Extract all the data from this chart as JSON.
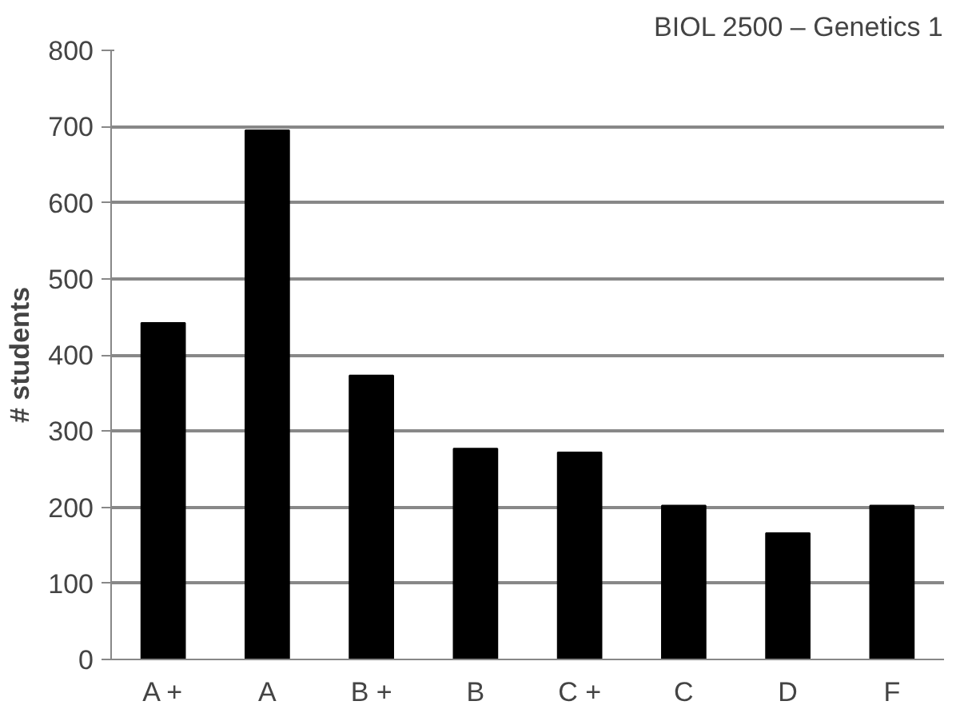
{
  "chart_data": {
    "type": "bar",
    "title": "BIOL 2500 – Genetics 1",
    "ylabel": "# students",
    "categories": [
      "A +",
      "A",
      "B +",
      "B",
      "C +",
      "C",
      "D",
      "F"
    ],
    "values": [
      442,
      695,
      373,
      277,
      272,
      202,
      166,
      202
    ],
    "color": "#000000",
    "ylim": [
      0,
      800
    ],
    "yticks": [
      0,
      100,
      200,
      300,
      400,
      500,
      600,
      700,
      800
    ],
    "grid": "y"
  }
}
